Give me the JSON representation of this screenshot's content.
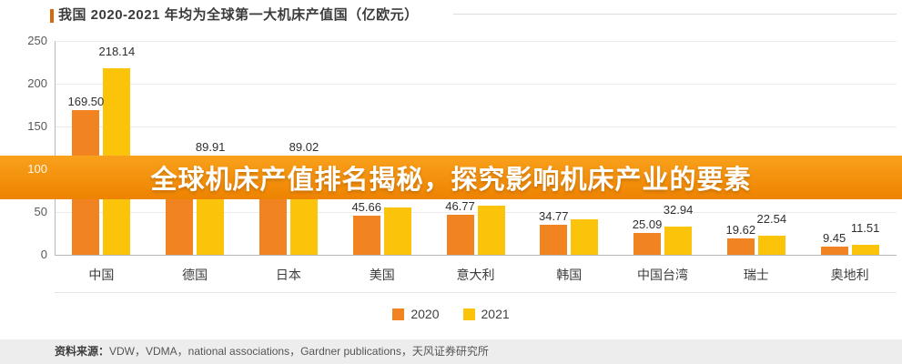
{
  "header": {
    "title": "我国 2020-2021 年均为全球第一大机床产值国（亿欧元）",
    "accent_color": "#d4690e"
  },
  "banner": {
    "text": "全球机床产值排名揭秘，探究影响机床产业的要素",
    "color_start": "#f9a11c",
    "color_end": "#ee8300"
  },
  "footer": {
    "source_label": "资料来源：",
    "source_text": "VDW，VDMA，national associations，Gardner publications，天风证券研究所"
  },
  "chart_data": {
    "type": "bar",
    "title": "我国 2020-2021 年均为全球第一大机床产值国（亿欧元）",
    "unit": "亿欧元",
    "categories": [
      "中国",
      "德国",
      "日本",
      "美国",
      "意大利",
      "韩国",
      "中国台湾",
      "瑞士",
      "奥地利"
    ],
    "series": [
      {
        "name": "2020",
        "color": "#f28321",
        "values": [
          169.5,
          84.0,
          80.0,
          45.66,
          46.77,
          34.77,
          25.09,
          19.62,
          9.45
        ],
        "labels": [
          "169.50",
          null,
          null,
          "45.66",
          "46.77",
          "34.77",
          "25.09",
          "19.62",
          "9.45"
        ]
      },
      {
        "name": "2021",
        "color": "#fcc30b",
        "values": [
          218.14,
          89.91,
          89.02,
          55.0,
          57.0,
          41.0,
          32.94,
          22.54,
          11.51
        ],
        "labels": [
          "218.14",
          "89.91",
          "89.02",
          null,
          null,
          null,
          "32.94",
          "22.54",
          "11.51"
        ]
      }
    ],
    "ylim": [
      0,
      250
    ],
    "yticks": [
      0,
      50,
      100,
      150,
      200,
      250
    ],
    "grid": true,
    "legend_position": "bottom"
  }
}
